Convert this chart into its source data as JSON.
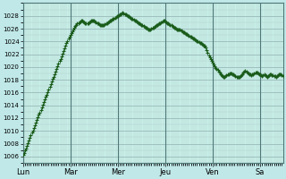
{
  "bg_color": "#c0e8e8",
  "plot_bg_color": "#c8f0e8",
  "line_color": "#1a5c1a",
  "marker": "+",
  "marker_size": 2.5,
  "marker_lw": 0.8,
  "ylim": [
    1005,
    1030
  ],
  "ytick_min": 1006,
  "ytick_max": 1028,
  "ytick_step": 2,
  "day_labels": [
    "Lun",
    "Mar",
    "Mer",
    "Jeu",
    "Ven",
    "Sa"
  ],
  "n_points": 264,
  "points_per_day": 48,
  "pressure": [
    1006.2,
    1006.5,
    1006.9,
    1007.3,
    1007.7,
    1008.1,
    1008.5,
    1008.9,
    1009.3,
    1009.7,
    1010.1,
    1010.5,
    1010.9,
    1011.3,
    1011.7,
    1012.1,
    1012.5,
    1012.9,
    1013.3,
    1013.7,
    1014.1,
    1014.5,
    1014.9,
    1015.3,
    1015.7,
    1016.1,
    1016.5,
    1016.9,
    1017.3,
    1017.7,
    1018.1,
    1018.5,
    1018.9,
    1019.3,
    1019.7,
    1020.1,
    1020.5,
    1020.9,
    1021.3,
    1021.7,
    1022.1,
    1022.5,
    1022.9,
    1023.3,
    1023.7,
    1024.1,
    1024.4,
    1024.7,
    1025.0,
    1025.3,
    1025.6,
    1025.9,
    1026.2,
    1026.4,
    1026.6,
    1026.8,
    1026.9,
    1027.0,
    1027.1,
    1027.2,
    1027.2,
    1027.1,
    1027.0,
    1026.9,
    1026.8,
    1026.8,
    1026.9,
    1027.0,
    1027.1,
    1027.2,
    1027.3,
    1027.3,
    1027.2,
    1027.1,
    1027.0,
    1026.9,
    1026.8,
    1026.7,
    1026.6,
    1026.5,
    1026.5,
    1026.5,
    1026.6,
    1026.7,
    1026.8,
    1026.9,
    1027.0,
    1027.1,
    1027.2,
    1027.3,
    1027.4,
    1027.5,
    1027.6,
    1027.7,
    1027.8,
    1027.9,
    1028.0,
    1028.1,
    1028.2,
    1028.3,
    1028.4,
    1028.5,
    1028.4,
    1028.3,
    1028.2,
    1028.1,
    1028.0,
    1027.9,
    1027.8,
    1027.7,
    1027.6,
    1027.5,
    1027.4,
    1027.3,
    1027.2,
    1027.1,
    1027.0,
    1026.9,
    1026.8,
    1026.7,
    1026.6,
    1026.5,
    1026.4,
    1026.3,
    1026.2,
    1026.1,
    1026.0,
    1025.9,
    1025.9,
    1025.9,
    1026.0,
    1026.1,
    1026.2,
    1026.3,
    1026.4,
    1026.5,
    1026.6,
    1026.7,
    1026.8,
    1026.9,
    1027.0,
    1027.1,
    1027.2,
    1027.2,
    1027.1,
    1027.0,
    1026.9,
    1026.8,
    1026.7,
    1026.6,
    1026.5,
    1026.4,
    1026.3,
    1026.2,
    1026.1,
    1026.0,
    1025.9,
    1025.8,
    1025.8,
    1025.8,
    1025.7,
    1025.6,
    1025.5,
    1025.4,
    1025.3,
    1025.2,
    1025.1,
    1025.0,
    1024.9,
    1024.8,
    1024.7,
    1024.6,
    1024.5,
    1024.4,
    1024.3,
    1024.2,
    1024.1,
    1024.0,
    1023.9,
    1023.8,
    1023.7,
    1023.6,
    1023.5,
    1023.4,
    1023.3,
    1023.0,
    1022.6,
    1022.2,
    1021.8,
    1021.5,
    1021.2,
    1021.0,
    1020.7,
    1020.4,
    1020.1,
    1019.9,
    1019.7,
    1019.5,
    1019.3,
    1019.1,
    1018.9,
    1018.7,
    1018.6,
    1018.5,
    1018.5,
    1018.6,
    1018.7,
    1018.8,
    1018.9,
    1019.0,
    1019.0,
    1019.0,
    1018.9,
    1018.8,
    1018.7,
    1018.6,
    1018.5,
    1018.4,
    1018.4,
    1018.5,
    1018.6,
    1018.7,
    1018.9,
    1019.1,
    1019.3,
    1019.4,
    1019.3,
    1019.2,
    1019.0,
    1018.9,
    1018.8,
    1018.7,
    1018.8,
    1018.9,
    1019.0,
    1019.1,
    1019.2,
    1019.1,
    1019.0,
    1018.9,
    1018.8,
    1018.7,
    1018.6,
    1018.7,
    1018.8,
    1018.7,
    1018.6,
    1018.5,
    1018.6,
    1018.7,
    1018.8,
    1018.8,
    1018.7,
    1018.7,
    1018.6,
    1018.6,
    1018.5,
    1018.6,
    1018.7,
    1018.8,
    1018.9,
    1018.8,
    1018.7,
    1018.6
  ]
}
